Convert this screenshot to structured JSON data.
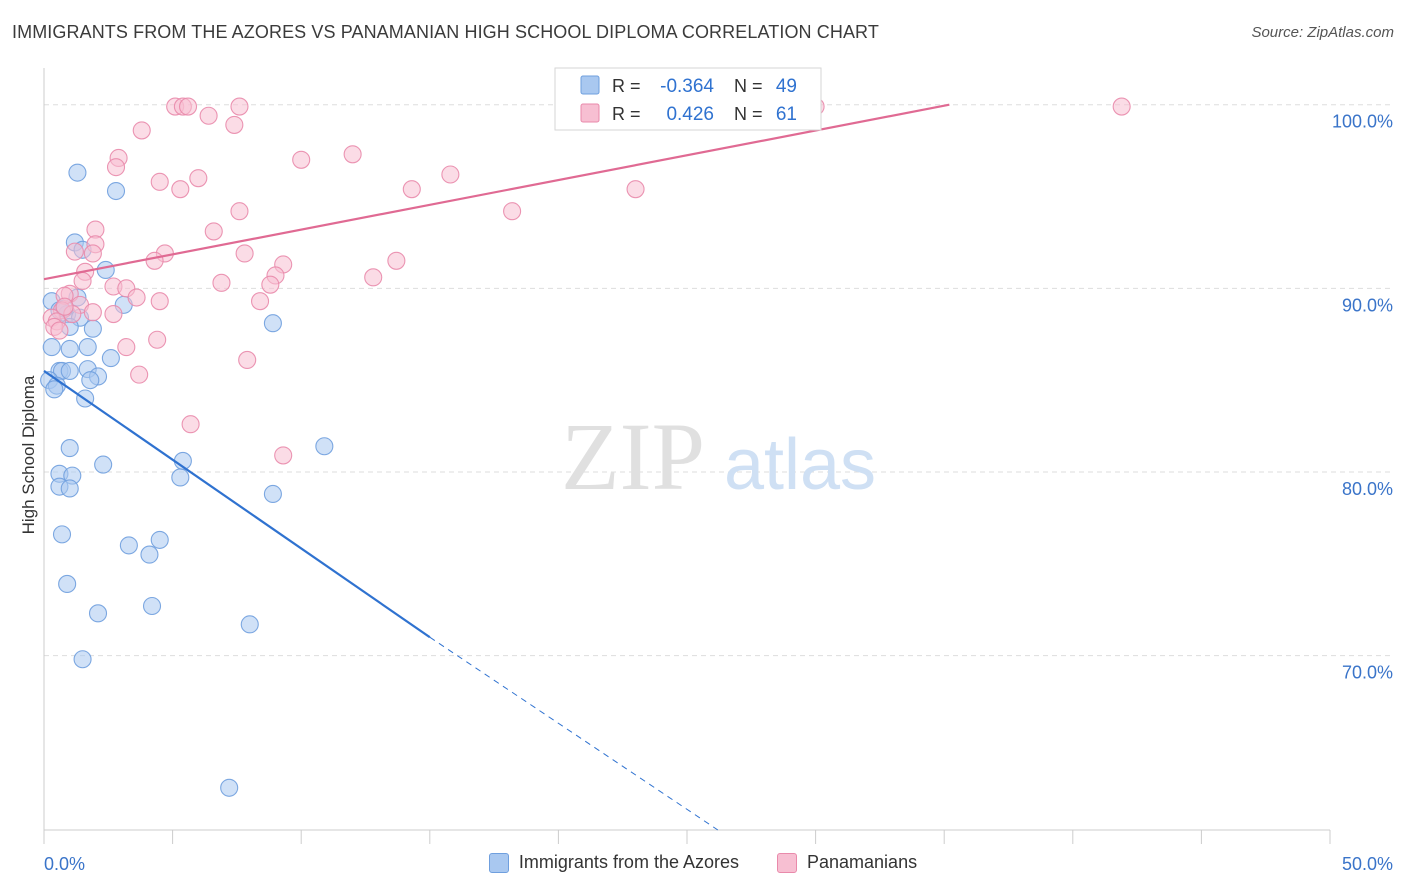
{
  "title": "IMMIGRANTS FROM THE AZORES VS PANAMANIAN HIGH SCHOOL DIPLOMA CORRELATION CHART",
  "source": "Source: ZipAtlas.com",
  "watermark": {
    "zip": "ZIP",
    "atlas": "atlas"
  },
  "colors": {
    "blue_fill": "#a9c8f0",
    "blue_stroke": "#6f9fde",
    "blue_line": "#2f72d0",
    "pink_fill": "#f7bfd2",
    "pink_stroke": "#e98aab",
    "pink_line": "#e06a93",
    "tick_label": "#3a74c9",
    "grid": "#dddddd"
  },
  "stats_legend": {
    "rows": [
      {
        "r_label": "R =",
        "r_value": "-0.364",
        "n_label": "N =",
        "n_value": "49"
      },
      {
        "r_label": "R =",
        "r_value": "0.426",
        "n_label": "N =",
        "n_value": "61"
      }
    ]
  },
  "chart_data": {
    "type": "scatter",
    "title": "IMMIGRANTS FROM THE AZORES VS PANAMANIAN HIGH SCHOOL DIPLOMA CORRELATION CHART",
    "xlabel": "",
    "ylabel": "High School Diploma",
    "xlim": [
      0,
      50
    ],
    "ylim": [
      60.5,
      102
    ],
    "x_tick_labels": [
      "0.0%",
      "50.0%"
    ],
    "y_ticks": [
      70,
      80,
      90,
      100
    ],
    "y_tick_labels": [
      "70.0%",
      "80.0%",
      "90.0%",
      "100.0%"
    ],
    "grid": true,
    "legend_position": "bottom",
    "series": [
      {
        "name": "Immigrants from the Azores",
        "color": "#a9c8f0",
        "trend": {
          "x": [
            0,
            15
          ],
          "y": [
            85.5,
            71.0
          ],
          "dashed_to": [
            26.2,
            60.5
          ]
        },
        "points": [
          [
            1.3,
            96.3
          ],
          [
            2.8,
            95.3
          ],
          [
            1.2,
            92.5
          ],
          [
            1.5,
            92.1
          ],
          [
            2.4,
            91.0
          ],
          [
            0.3,
            89.3
          ],
          [
            0.6,
            88.8
          ],
          [
            0.9,
            88.6
          ],
          [
            1.3,
            89.5
          ],
          [
            1.4,
            88.4
          ],
          [
            3.1,
            89.1
          ],
          [
            1.0,
            87.9
          ],
          [
            1.9,
            87.8
          ],
          [
            8.9,
            88.1
          ],
          [
            0.3,
            86.8
          ],
          [
            1.0,
            86.7
          ],
          [
            1.7,
            86.8
          ],
          [
            2.6,
            86.2
          ],
          [
            0.6,
            85.5
          ],
          [
            0.7,
            85.5
          ],
          [
            1.0,
            85.5
          ],
          [
            1.7,
            85.6
          ],
          [
            2.1,
            85.2
          ],
          [
            1.8,
            85.0
          ],
          [
            0.2,
            85.0
          ],
          [
            0.5,
            84.7
          ],
          [
            0.4,
            84.5
          ],
          [
            1.6,
            84.0
          ],
          [
            1.0,
            81.3
          ],
          [
            5.4,
            80.6
          ],
          [
            2.3,
            80.4
          ],
          [
            10.9,
            81.4
          ],
          [
            0.6,
            79.9
          ],
          [
            1.1,
            79.8
          ],
          [
            5.3,
            79.7
          ],
          [
            0.6,
            79.2
          ],
          [
            1.0,
            79.1
          ],
          [
            8.9,
            78.8
          ],
          [
            0.7,
            76.6
          ],
          [
            4.5,
            76.3
          ],
          [
            3.3,
            76.0
          ],
          [
            4.1,
            75.5
          ],
          [
            0.9,
            73.9
          ],
          [
            4.2,
            72.7
          ],
          [
            2.1,
            72.3
          ],
          [
            8.0,
            71.7
          ],
          [
            1.5,
            69.8
          ],
          [
            7.2,
            62.8
          ],
          [
            0.8,
            88.9
          ]
        ]
      },
      {
        "name": "Panamanians",
        "color": "#f7bfd2",
        "trend": {
          "x": [
            0,
            35.2
          ],
          "y": [
            90.5,
            100.0
          ]
        },
        "points": [
          [
            5.1,
            99.9
          ],
          [
            5.4,
            99.9
          ],
          [
            5.6,
            99.9
          ],
          [
            7.6,
            99.9
          ],
          [
            22.8,
            99.9
          ],
          [
            30.0,
            99.9
          ],
          [
            41.9,
            99.9
          ],
          [
            6.4,
            99.4
          ],
          [
            7.4,
            98.9
          ],
          [
            3.8,
            98.6
          ],
          [
            2.9,
            97.1
          ],
          [
            12.0,
            97.3
          ],
          [
            10.0,
            97.0
          ],
          [
            2.8,
            96.6
          ],
          [
            15.8,
            96.2
          ],
          [
            6.0,
            96.0
          ],
          [
            4.5,
            95.8
          ],
          [
            5.3,
            95.4
          ],
          [
            14.3,
            95.4
          ],
          [
            23.0,
            95.4
          ],
          [
            7.6,
            94.2
          ],
          [
            18.2,
            94.2
          ],
          [
            2.0,
            93.2
          ],
          [
            6.6,
            93.1
          ],
          [
            2.0,
            92.4
          ],
          [
            1.2,
            92.0
          ],
          [
            1.9,
            91.9
          ],
          [
            4.7,
            91.9
          ],
          [
            7.8,
            91.9
          ],
          [
            4.3,
            91.5
          ],
          [
            13.7,
            91.5
          ],
          [
            9.3,
            91.3
          ],
          [
            1.6,
            90.9
          ],
          [
            9.0,
            90.7
          ],
          [
            12.8,
            90.6
          ],
          [
            1.5,
            90.4
          ],
          [
            6.9,
            90.3
          ],
          [
            8.8,
            90.2
          ],
          [
            2.7,
            90.1
          ],
          [
            3.2,
            90.0
          ],
          [
            1.0,
            89.7
          ],
          [
            0.8,
            89.6
          ],
          [
            3.6,
            89.5
          ],
          [
            4.5,
            89.3
          ],
          [
            8.4,
            89.3
          ],
          [
            1.4,
            89.1
          ],
          [
            0.7,
            88.8
          ],
          [
            1.9,
            88.7
          ],
          [
            2.7,
            88.6
          ],
          [
            0.3,
            88.4
          ],
          [
            0.5,
            88.2
          ],
          [
            0.4,
            87.9
          ],
          [
            0.6,
            87.7
          ],
          [
            4.4,
            87.2
          ],
          [
            3.2,
            86.8
          ],
          [
            7.9,
            86.1
          ],
          [
            3.7,
            85.3
          ],
          [
            5.7,
            82.6
          ],
          [
            9.3,
            80.9
          ],
          [
            1.1,
            88.6
          ],
          [
            0.8,
            89.0
          ]
        ]
      }
    ]
  }
}
